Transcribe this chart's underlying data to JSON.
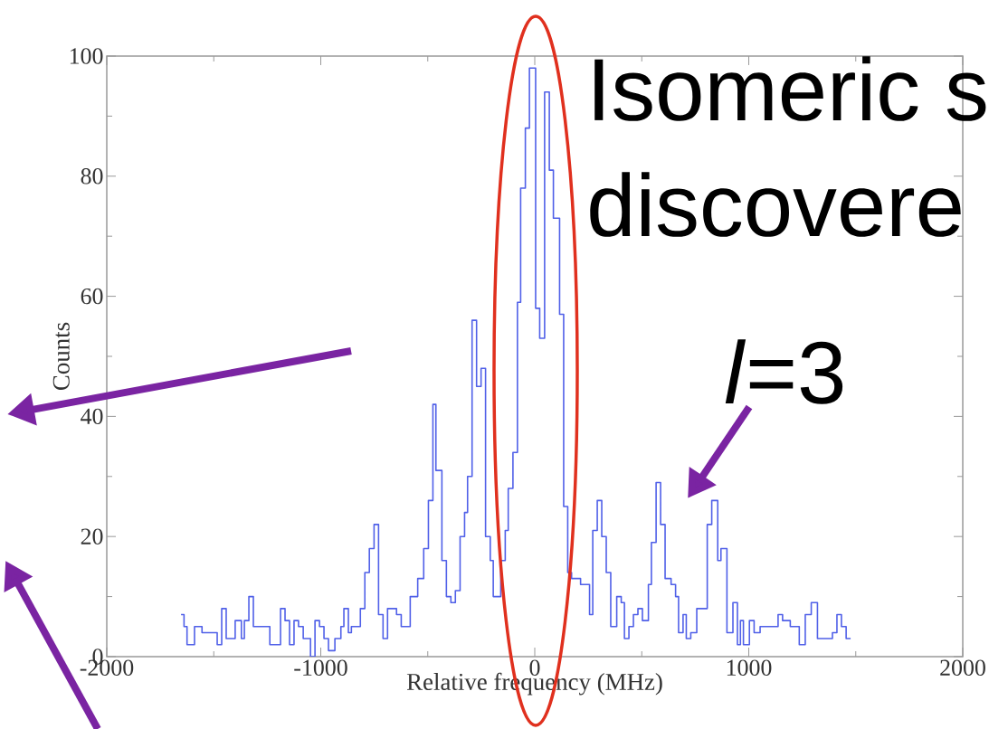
{
  "chart_data": {
    "type": "step",
    "xlabel": "Relative frequency (MHz)",
    "ylabel": "Counts",
    "color": "#5060e8",
    "xlim": [
      -2000,
      2000
    ],
    "ylim": [
      0,
      100
    ],
    "xticks": [
      -2000,
      {
        "value": -1500,
        "label": null
      },
      -1000,
      {
        "value": -500,
        "label": null
      },
      0,
      {
        "value": 500,
        "label": null
      },
      1000,
      {
        "value": 1500,
        "label": null
      },
      2000
    ],
    "yticks": [
      0,
      {
        "value": 10,
        "label": null
      },
      20,
      {
        "value": 30,
        "label": null
      },
      40,
      {
        "value": 50,
        "label": null
      },
      60,
      {
        "value": 70,
        "label": null
      },
      80,
      {
        "value": 90,
        "label": null
      },
      100
    ],
    "annotations": [
      "Isomeric s",
      "discovere",
      "*l*=3"
    ],
    "x": [
      -1653,
      -1639,
      -1625,
      -1590,
      -1555,
      -1484,
      -1463,
      -1442,
      -1400,
      -1371,
      -1357,
      -1336,
      -1315,
      -1238,
      -1188,
      -1167,
      -1146,
      -1125,
      -1104,
      -1082,
      -1048,
      -1027,
      -1006,
      -985,
      -964,
      -934,
      -906,
      -892,
      -871,
      -857,
      -815,
      -794,
      -773,
      -751,
      -730,
      -709,
      -688,
      -646,
      -624,
      -582,
      -547,
      -519,
      -497,
      -476,
      -462,
      -434,
      -413,
      -392,
      -371,
      -349,
      -328,
      -314,
      -293,
      -272,
      -251,
      -230,
      -208,
      -194,
      -159,
      -138,
      -124,
      -102,
      -81,
      -66,
      -44,
      -25,
      4,
      23,
      46,
      68,
      87,
      116,
      135,
      154,
      172,
      214,
      256,
      271,
      292,
      313,
      334,
      355,
      383,
      404,
      419,
      440,
      461,
      482,
      503,
      531,
      545,
      567,
      588,
      609,
      637,
      658,
      672,
      693,
      708,
      729,
      757,
      806,
      827,
      855,
      870,
      898,
      926,
      947,
      961,
      975,
      1003,
      1025,
      1053,
      1137,
      1158,
      1194,
      1236,
      1264,
      1292,
      1321,
      1391,
      1412,
      1433,
      1455,
      1476
    ],
    "values": [
      7,
      5,
      2,
      5,
      4,
      2,
      8,
      3,
      6,
      3,
      6,
      10,
      5,
      2,
      8,
      6,
      2,
      6,
      5,
      3,
      0,
      6,
      5,
      3,
      1,
      3,
      5,
      8,
      4,
      5,
      8,
      14,
      18,
      22,
      7,
      3,
      8,
      7,
      5,
      10,
      13,
      18,
      26,
      42,
      31,
      16,
      10,
      9,
      11,
      20,
      24,
      30,
      56,
      45,
      48,
      20,
      16,
      10,
      16,
      21,
      28,
      34,
      59,
      78,
      88,
      98,
      58,
      53,
      94,
      81,
      73,
      57,
      25,
      14,
      13,
      12,
      7,
      21,
      26,
      20,
      14,
      5,
      10,
      9,
      3,
      5,
      7,
      8,
      6,
      12,
      19,
      29,
      22,
      13,
      12,
      10,
      4,
      7,
      3,
      4,
      8,
      22,
      26,
      16,
      18,
      4,
      9,
      2,
      6,
      2,
      6,
      4,
      5,
      7,
      6,
      5,
      2,
      7,
      9,
      3,
      4,
      7,
      5,
      3,
      3
    ]
  }
}
